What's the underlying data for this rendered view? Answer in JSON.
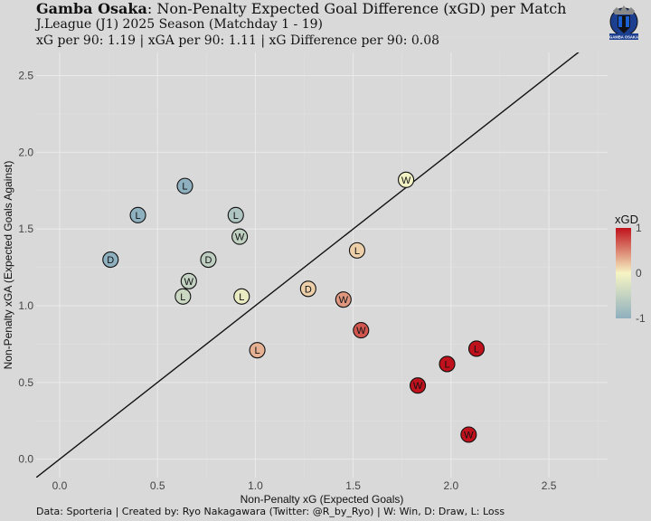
{
  "header": {
    "team": "Gamba Osaka",
    "title_rest": ": Non-Penalty Expected Goal Difference (xGD) per Match",
    "subtitle1": "J.League (J1) 2025 Season (Matchday 1 - 19)",
    "subtitle2": "xG per 90: 1.19 | xGA per 90: 1.11 | xG Difference per 90: 0.08"
  },
  "caption": "Data: Sporteria | Created by: Ryo Nakagawara (Twitter: @R_by_Ryo) | W: Win, D: Draw, L: Loss",
  "logo": {
    "text": "GAMBA OSAKA"
  },
  "colors": {
    "background": "#d9d9d9",
    "grid": "#e6e6e6",
    "low": "#8fb0bf",
    "mid": "#f6f4c4",
    "high": "#c0121d"
  },
  "chart_data": {
    "type": "scatter",
    "xlabel": "Non-Penalty xG (Expected Goals)",
    "ylabel": "Non-Penalty xGA (Expected Goals Against)",
    "xlim": [
      -0.12,
      2.8
    ],
    "ylim": [
      -0.12,
      2.65
    ],
    "x_ticks": [
      "0.0",
      "0.5",
      "1.0",
      "1.5",
      "2.0",
      "2.5"
    ],
    "y_ticks": [
      "0.0",
      "0.5",
      "1.0",
      "1.5",
      "2.0",
      "2.5"
    ],
    "reference_line": "y = x",
    "legend": {
      "title": "xGD",
      "ticks": [
        "1",
        "0",
        "-1"
      ],
      "range": [
        -1,
        1
      ]
    },
    "points": [
      {
        "x": 0.26,
        "y": 1.3,
        "result": "D"
      },
      {
        "x": 0.4,
        "y": 1.59,
        "result": "L"
      },
      {
        "x": 0.64,
        "y": 1.78,
        "result": "L"
      },
      {
        "x": 0.9,
        "y": 1.59,
        "result": "L"
      },
      {
        "x": 0.92,
        "y": 1.45,
        "result": "W"
      },
      {
        "x": 0.76,
        "y": 1.3,
        "result": "D"
      },
      {
        "x": 0.66,
        "y": 1.16,
        "result": "W"
      },
      {
        "x": 0.63,
        "y": 1.06,
        "result": "L"
      },
      {
        "x": 0.93,
        "y": 1.06,
        "result": "L"
      },
      {
        "x": 1.01,
        "y": 0.71,
        "result": "L"
      },
      {
        "x": 1.27,
        "y": 1.11,
        "result": "D"
      },
      {
        "x": 1.45,
        "y": 1.04,
        "result": "W"
      },
      {
        "x": 1.52,
        "y": 1.36,
        "result": "L"
      },
      {
        "x": 1.77,
        "y": 1.82,
        "result": "W"
      },
      {
        "x": 1.54,
        "y": 0.84,
        "result": "W"
      },
      {
        "x": 1.83,
        "y": 0.48,
        "result": "W"
      },
      {
        "x": 1.98,
        "y": 0.62,
        "result": "L"
      },
      {
        "x": 2.13,
        "y": 0.72,
        "result": "L"
      },
      {
        "x": 2.09,
        "y": 0.16,
        "result": "W"
      }
    ]
  }
}
